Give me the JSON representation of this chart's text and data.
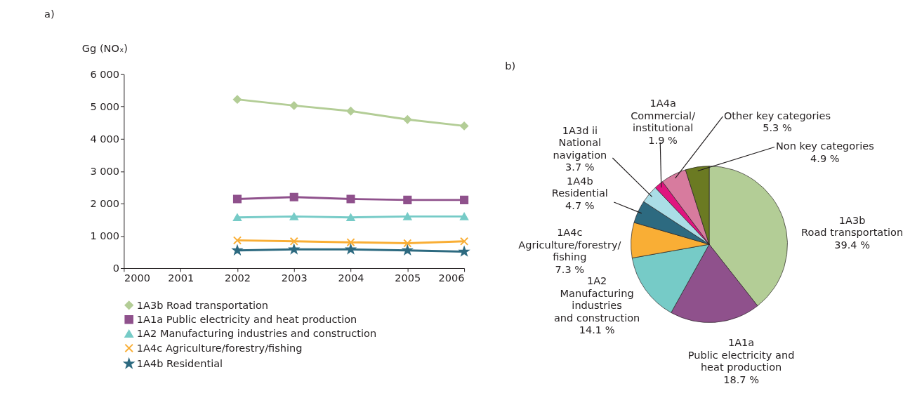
{
  "chart_data": [
    {
      "type": "line",
      "title": "a)",
      "ylabel": "Gg (NOₓ)",
      "x": [
        2002,
        2003,
        2004,
        2005,
        2006
      ],
      "xlim": [
        2000,
        2006
      ],
      "xticks": [
        2000,
        2001,
        2002,
        2003,
        2004,
        2005,
        2006
      ],
      "ylim": [
        0,
        6000
      ],
      "yticks": [
        0,
        {
          "value": 1000,
          "label": "1 000"
        },
        {
          "value": 2000,
          "label": "2 000"
        },
        {
          "value": 3000,
          "label": "3 000"
        },
        {
          "value": 4000,
          "label": "4 000"
        },
        {
          "value": 5000,
          "label": "5 000"
        },
        {
          "value": 6000,
          "label": "6 000"
        }
      ],
      "grid": false,
      "legend": "bottom",
      "line_style": "solid",
      "series": [
        {
          "name": "1A3b Road transportation",
          "color": "#b3cd96",
          "marker": "diamond",
          "values": [
            5220,
            5030,
            4860,
            4600,
            4400
          ]
        },
        {
          "name": "1A1a Public electricity and heat production",
          "color": "#8f518c",
          "marker": "square",
          "values": [
            2140,
            2200,
            2140,
            2110,
            2110
          ]
        },
        {
          "name": "1A2 Manufacturing industries and construction",
          "color": "#76cbc7",
          "marker": "triangle",
          "values": [
            1570,
            1600,
            1570,
            1600,
            1600
          ]
        },
        {
          "name": "1A4c Agriculture/forestry/fishing",
          "color": "#f9ae35",
          "marker": "cross",
          "values": [
            860,
            830,
            800,
            770,
            830
          ]
        },
        {
          "name": "1A4b Residential",
          "color": "#2d6a80",
          "marker": "star",
          "values": [
            550,
            580,
            580,
            550,
            510
          ]
        }
      ]
    },
    {
      "type": "pie",
      "title": "b)",
      "legend": false,
      "categories": [
        "1A3b\nRoad transportation",
        "1A1a\nPublic electricity and\nheat production",
        "1A2\nManufacturing\nindustries\nand construction",
        "1A4c\nAgriculture/forestry/\nfishing",
        "1A4b\nResidential",
        "1A3d ii\nNational\nnavigation",
        "1A4a\nCommercial/\ninstitutional",
        "Other key categories",
        "Non key categories"
      ],
      "values": [
        39.4,
        18.7,
        14.1,
        7.3,
        4.7,
        3.7,
        1.9,
        5.3,
        4.9
      ],
      "value_labels": [
        "39.4 %",
        "18.7 %",
        "14.1 %",
        "7.3 %",
        "4.7 %",
        "3.7 %",
        "1.9 %",
        "5.3 %",
        "4.9 %"
      ],
      "colors": [
        "#b3cd96",
        "#8f518c",
        "#76cbc7",
        "#f9ae35",
        "#2d6a80",
        "#aadde6",
        "#e0147f",
        "#d77b9e",
        "#6b7a22"
      ]
    }
  ]
}
